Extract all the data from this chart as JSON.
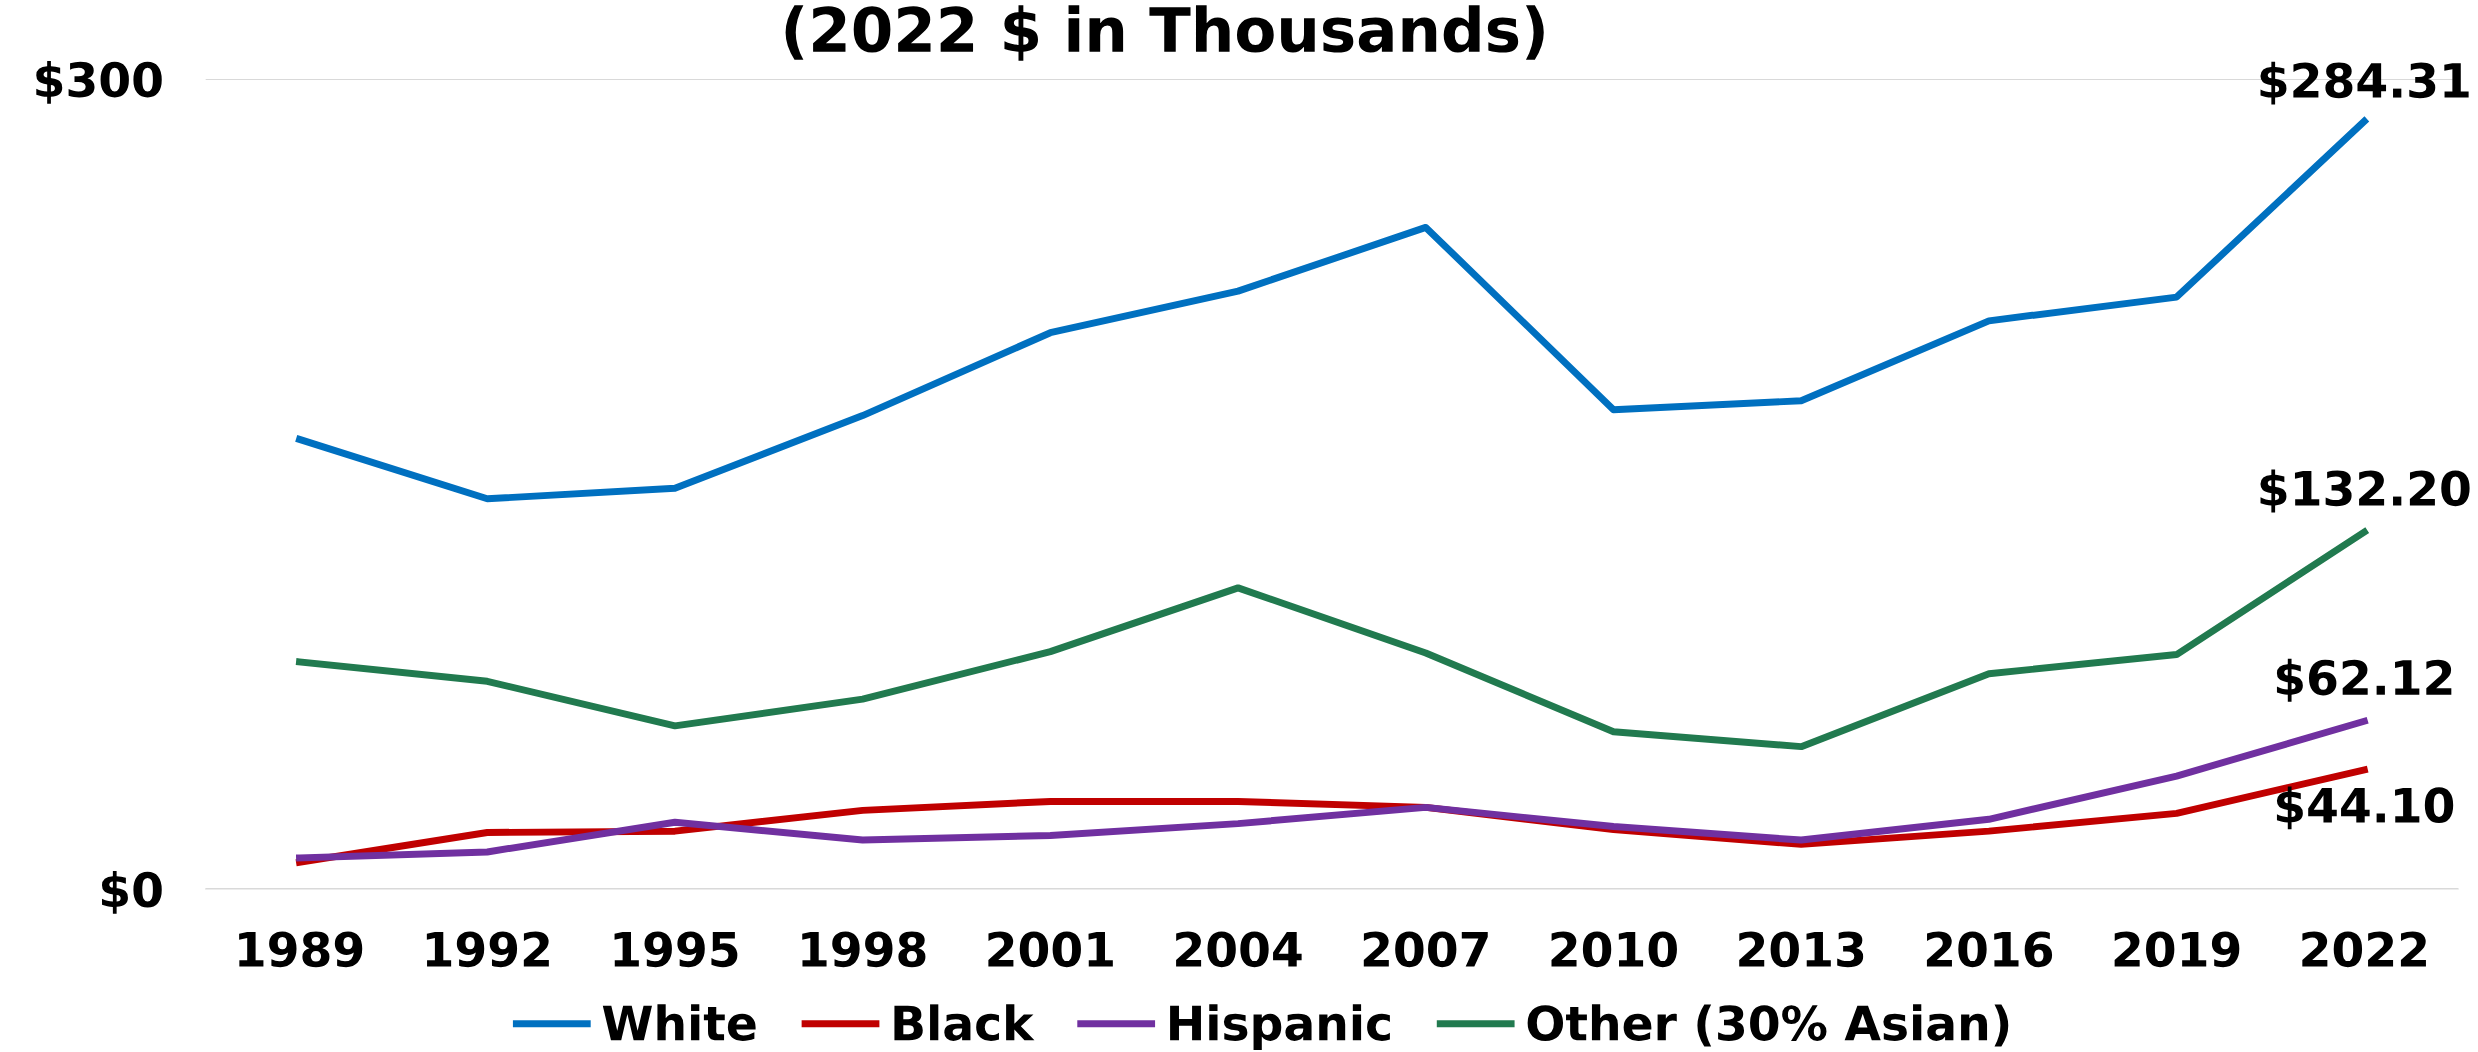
{
  "chart_data": {
    "type": "line",
    "title": "(2022 $ in Thousands)",
    "categories": [
      "1989",
      "1992",
      "1995",
      "1998",
      "2001",
      "2004",
      "2007",
      "2010",
      "2013",
      "2016",
      "2019",
      "2022"
    ],
    "series": [
      {
        "name": "White",
        "color": "#0070c0",
        "values": [
          166.5,
          144.5,
          148.4,
          175.3,
          206,
          221.4,
          245,
          177.5,
          180.8,
          210.4,
          219.2,
          284.31
        ],
        "value_labels": [
          null,
          null,
          null,
          null,
          null,
          null,
          null,
          null,
          null,
          null,
          null,
          "$284.31"
        ]
      },
      {
        "name": "Black",
        "color": "#c00000",
        "values": [
          9.9,
          20.9,
          21.4,
          29.1,
          32.4,
          32.4,
          30.2,
          22,
          16.5,
          21.4,
          28,
          44.1
        ],
        "value_labels": [
          null,
          null,
          null,
          null,
          null,
          null,
          null,
          null,
          null,
          null,
          null,
          "$44.10"
        ]
      },
      {
        "name": "Hispanic",
        "color": "#7030a0",
        "values": [
          11.5,
          13.7,
          24.7,
          18.1,
          19.8,
          24.2,
          30.2,
          23.1,
          18.1,
          25.8,
          41.8,
          62.12
        ],
        "value_labels": [
          null,
          null,
          null,
          null,
          null,
          null,
          null,
          null,
          null,
          null,
          null,
          "$62.12"
        ]
      },
      {
        "name": "Other (30% Asian)",
        "color": "#217a4f",
        "values": [
          84.1,
          76.9,
          60.4,
          70.3,
          87.9,
          111.5,
          87.4,
          58.2,
          52.7,
          79.7,
          86.8,
          132.2
        ],
        "value_labels": [
          null,
          null,
          null,
          null,
          null,
          null,
          null,
          null,
          null,
          null,
          null,
          "$132.20"
        ]
      }
    ],
    "ylim": [
      0,
      300
    ],
    "yticks": [
      {
        "value": 0,
        "label": "$0"
      },
      {
        "value": 300,
        "label": "$300"
      }
    ],
    "grid": "y",
    "legend": "bottom",
    "marker": "none",
    "line_style": "solid"
  }
}
